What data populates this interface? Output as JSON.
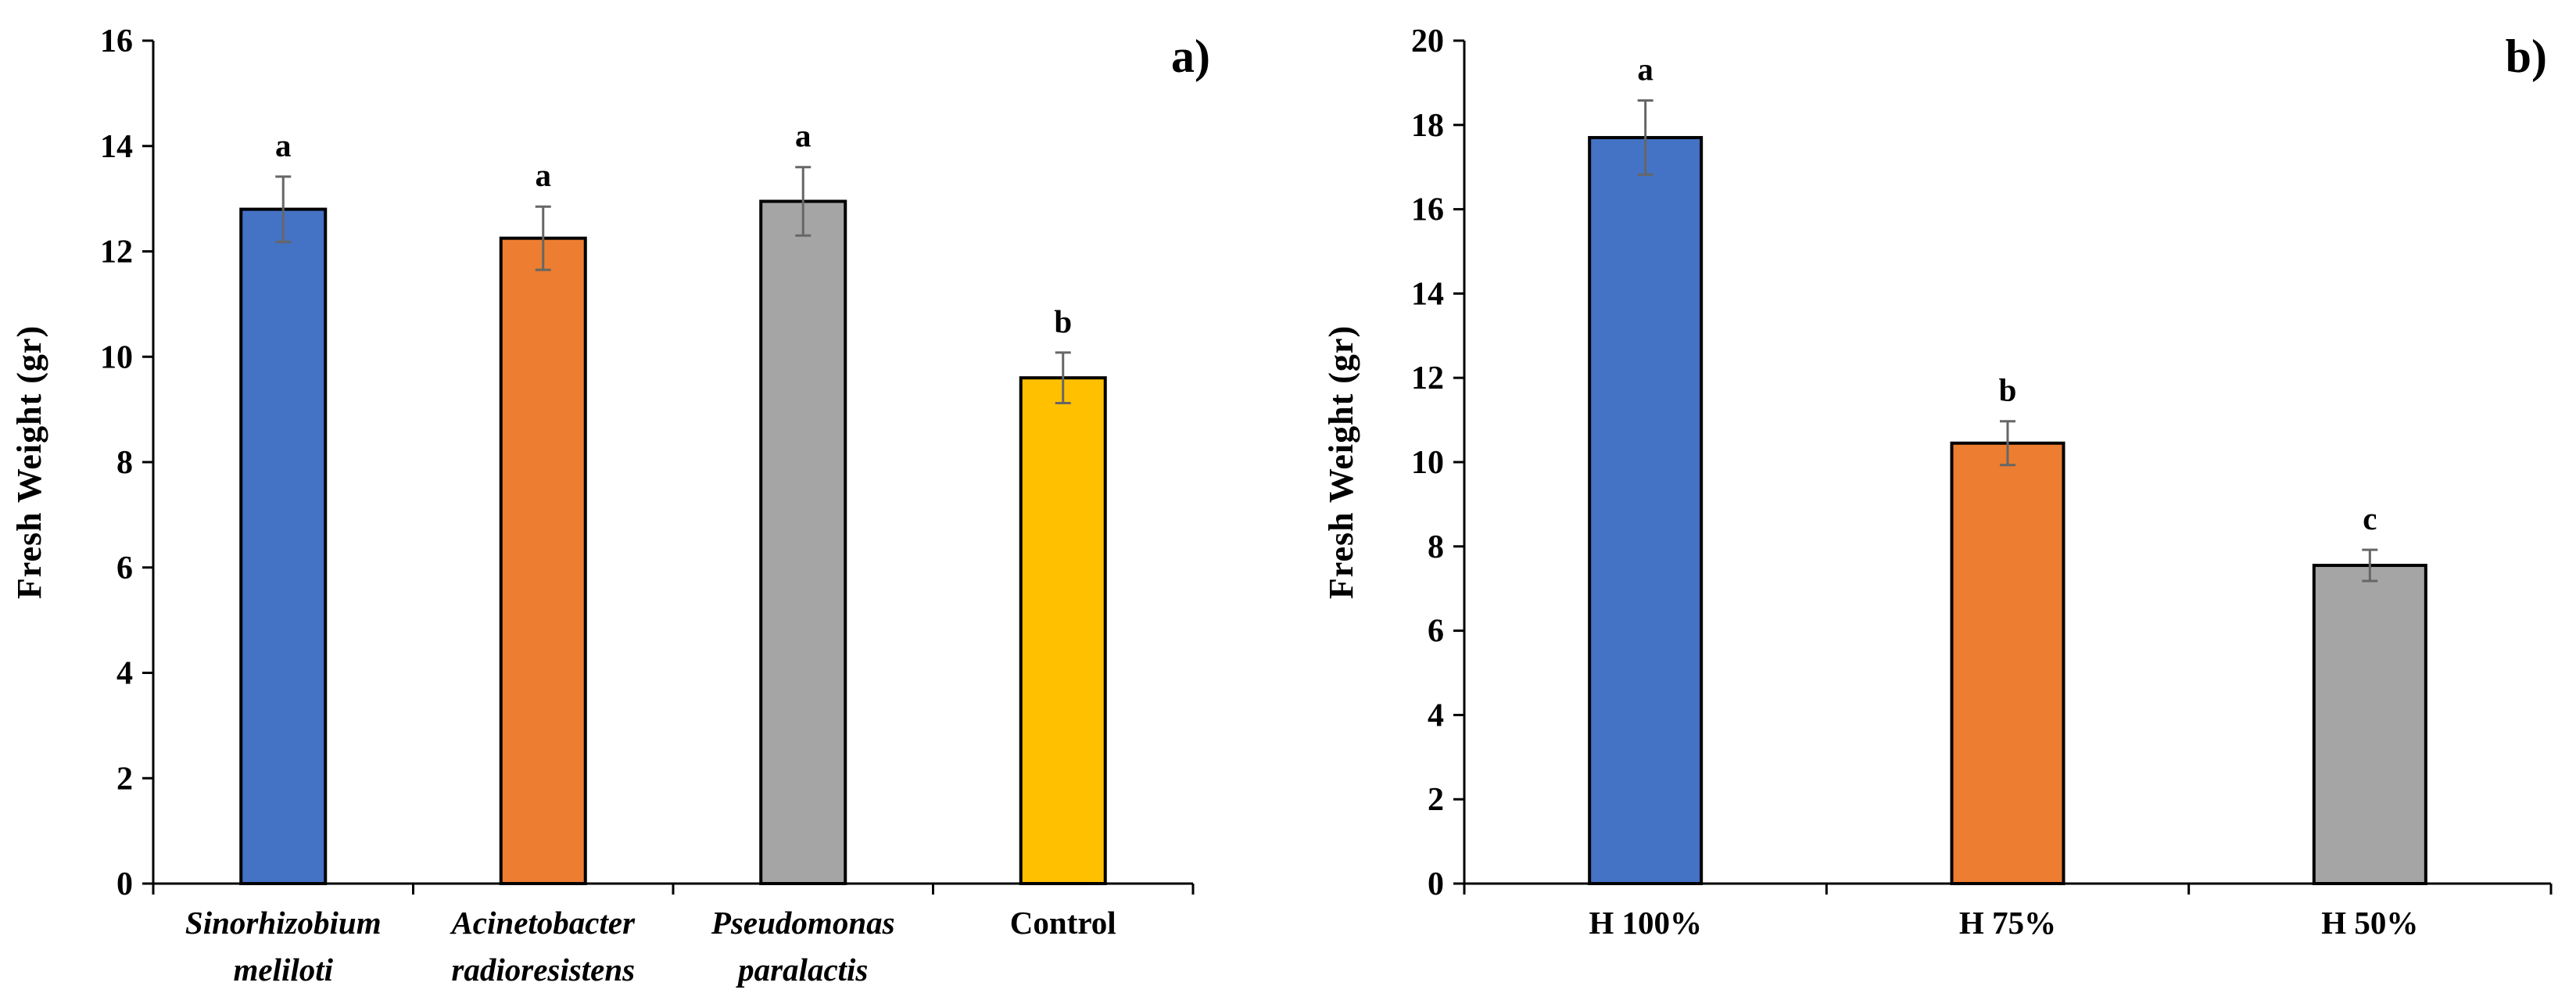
{
  "chart_data": [
    {
      "type": "bar",
      "panel_label": "a)",
      "ylabel": "Fresh Weight (gr)",
      "xlabel": "",
      "ylim": [
        0,
        16
      ],
      "yticks": [
        "0",
        "2",
        "4",
        "6",
        "8",
        "10",
        "12",
        "14",
        "16"
      ],
      "italic_categories": true,
      "categories": [
        [
          "Sinorhizobium",
          "meliloti"
        ],
        [
          "Acinetobacter",
          "radioresistens"
        ],
        [
          "Pseudomonas",
          "paralactis"
        ],
        [
          "Control"
        ]
      ],
      "italic_flags": [
        true,
        true,
        true,
        false
      ],
      "values": [
        12.8,
        12.25,
        12.95,
        9.6
      ],
      "errors": [
        0.62,
        0.6,
        0.65,
        0.48
      ],
      "significance": [
        "a",
        "a",
        "a",
        "b"
      ],
      "colors": [
        "#4472C4",
        "#ED7D31",
        "#A5A5A5",
        "#FFC000"
      ]
    },
    {
      "type": "bar",
      "panel_label": "b)",
      "ylabel": "Fresh Weight (gr)",
      "xlabel": "",
      "ylim": [
        0,
        20
      ],
      "yticks": [
        "0",
        "2",
        "4",
        "6",
        "8",
        "10",
        "12",
        "14",
        "16",
        "18",
        "20"
      ],
      "categories": [
        [
          "H 100%"
        ],
        [
          "H 75%"
        ],
        [
          "H 50%"
        ]
      ],
      "italic_flags": [
        false,
        false,
        false
      ],
      "values": [
        17.7,
        10.45,
        7.55
      ],
      "errors": [
        0.88,
        0.52,
        0.37
      ],
      "significance": [
        "a",
        "b",
        "c"
      ],
      "colors": [
        "#4472C4",
        "#ED7D31",
        "#A5A5A5"
      ]
    }
  ]
}
